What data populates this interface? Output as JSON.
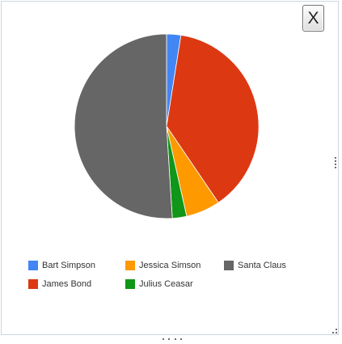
{
  "dialog": {
    "close_label": "X"
  },
  "colors": {
    "bart": "#4285f4",
    "jessica": "#ff9900",
    "santa": "#666666",
    "james": "#dc3912",
    "julius": "#109618"
  },
  "chart_data": {
    "type": "pie",
    "slices": [
      {
        "label": "Bart Simpson",
        "value": 2.5,
        "color": "#4285f4"
      },
      {
        "label": "James Bond",
        "value": 38,
        "color": "#dc3912"
      },
      {
        "label": "Jessica Simson",
        "value": 6,
        "color": "#ff9900"
      },
      {
        "label": "Julius Ceasar",
        "value": 2.5,
        "color": "#109618"
      },
      {
        "label": "Santa Claus",
        "value": 51,
        "color": "#666666"
      }
    ],
    "legend": [
      {
        "label": "Bart Simpson",
        "color": "#4285f4"
      },
      {
        "label": "Jessica Simson",
        "color": "#ff9900"
      },
      {
        "label": "Santa Claus",
        "color": "#666666"
      },
      {
        "label": "James Bond",
        "color": "#dc3912"
      },
      {
        "label": "Julius Ceasar",
        "color": "#109618"
      }
    ],
    "legend_position": "bottom"
  }
}
